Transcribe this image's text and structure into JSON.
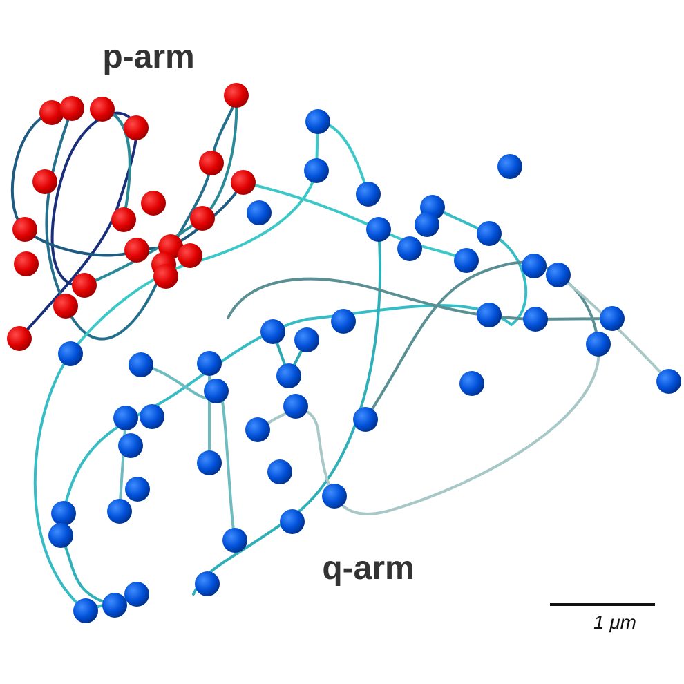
{
  "labels": {
    "p_arm": "p-arm",
    "q_arm": "q-arm",
    "scale_bar": "1 μm"
  }
}
